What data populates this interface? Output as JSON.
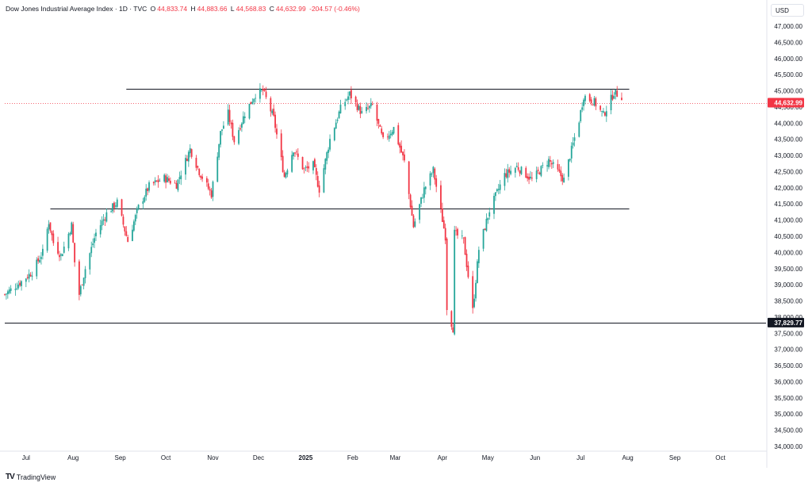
{
  "header": {
    "title": "Dow Jones Industrial Average Index · 1D · TVC",
    "open_label": "O",
    "open": "44,833.74",
    "high_label": "H",
    "high": "44,883.66",
    "low_label": "L",
    "low": "44,568.83",
    "close_label": "C",
    "close": "44,632.99",
    "change": "-204.57 (-0.46%)"
  },
  "currency_button": "USD",
  "brand": {
    "logo": "TV",
    "name": "TradingView"
  },
  "colors": {
    "up": "#26a69a",
    "down": "#f23645",
    "line": "#131722",
    "grid_text": "#131722",
    "badge_last": "#f23645",
    "badge_level": "#131722"
  },
  "chart_data": {
    "type": "candlestick",
    "ylim": [
      34000,
      47000
    ],
    "y_ticks": [
      "47,000.00",
      "46,500.00",
      "46,000.00",
      "45,500.00",
      "45,000.00",
      "44,500.00",
      "44,000.00",
      "43,500.00",
      "43,000.00",
      "42,500.00",
      "42,000.00",
      "41,500.00",
      "41,000.00",
      "40,500.00",
      "40,000.00",
      "39,500.00",
      "39,000.00",
      "38,500.00",
      "38,000.00",
      "37,500.00",
      "37,000.00",
      "36,500.00",
      "36,000.00",
      "35,500.00",
      "35,000.00",
      "34,500.00",
      "34,000.00"
    ],
    "x_ticks": [
      {
        "label": "Jul",
        "date": "2024-07-01",
        "bold": false
      },
      {
        "label": "Aug",
        "date": "2024-08-01",
        "bold": false
      },
      {
        "label": "Sep",
        "date": "2024-09-01",
        "bold": false
      },
      {
        "label": "Oct",
        "date": "2024-10-01",
        "bold": false
      },
      {
        "label": "Nov",
        "date": "2024-11-01",
        "bold": false
      },
      {
        "label": "Dec",
        "date": "2024-12-01",
        "bold": false
      },
      {
        "label": "2025",
        "date": "2025-01-01",
        "bold": true
      },
      {
        "label": "Feb",
        "date": "2025-02-01",
        "bold": false
      },
      {
        "label": "Mar",
        "date": "2025-03-01",
        "bold": false
      },
      {
        "label": "Apr",
        "date": "2025-04-01",
        "bold": false
      },
      {
        "label": "May",
        "date": "2025-05-01",
        "bold": false
      },
      {
        "label": "Jun",
        "date": "2025-06-01",
        "bold": false
      },
      {
        "label": "Jul",
        "date": "2025-07-01",
        "bold": false
      },
      {
        "label": "Aug",
        "date": "2025-08-01",
        "bold": false
      },
      {
        "label": "Sep",
        "date": "2025-09-01",
        "bold": false
      },
      {
        "label": "Oct",
        "date": "2025-10-01",
        "bold": false
      }
    ],
    "date_range": [
      "2024-06-17",
      "2025-10-31"
    ],
    "horizontal_lines": [
      {
        "name": "resistance",
        "value": 45060,
        "from": "2024-09-05",
        "to": "2025-08-02"
      },
      {
        "name": "support",
        "value": 41360,
        "from": "2024-07-17",
        "to": "2025-08-02"
      },
      {
        "name": "floor",
        "value": 37829.77,
        "from": "2024-06-17",
        "to": "2025-10-31",
        "label": "37,829.77"
      }
    ],
    "last_price": {
      "value": 44632.99,
      "label": "44,632.99"
    },
    "close_path": [
      [
        "2024-06-17",
        38700
      ],
      [
        "2024-06-28",
        39100
      ],
      [
        "2024-07-05",
        39400
      ],
      [
        "2024-07-12",
        40000
      ],
      [
        "2024-07-16",
        40950
      ],
      [
        "2024-07-19",
        40300
      ],
      [
        "2024-07-24",
        39900
      ],
      [
        "2024-07-31",
        40850
      ],
      [
        "2024-08-02",
        39700
      ],
      [
        "2024-08-05",
        38700
      ],
      [
        "2024-08-09",
        39500
      ],
      [
        "2024-08-16",
        40600
      ],
      [
        "2024-08-23",
        41200
      ],
      [
        "2024-08-30",
        41550
      ],
      [
        "2024-09-06",
        40350
      ],
      [
        "2024-09-13",
        41400
      ],
      [
        "2024-09-20",
        42050
      ],
      [
        "2024-09-30",
        42300
      ],
      [
        "2024-10-08",
        42100
      ],
      [
        "2024-10-17",
        43200
      ],
      [
        "2024-10-23",
        42500
      ],
      [
        "2024-10-31",
        41800
      ],
      [
        "2024-11-06",
        43700
      ],
      [
        "2024-11-11",
        44300
      ],
      [
        "2024-11-15",
        43450
      ],
      [
        "2024-11-22",
        44300
      ],
      [
        "2024-11-29",
        44900
      ],
      [
        "2024-12-04",
        45000
      ],
      [
        "2024-12-11",
        44150
      ],
      [
        "2024-12-18",
        42350
      ],
      [
        "2024-12-24",
        43200
      ],
      [
        "2024-12-31",
        42550
      ],
      [
        "2025-01-06",
        42700
      ],
      [
        "2025-01-10",
        41950
      ],
      [
        "2025-01-17",
        43500
      ],
      [
        "2025-01-24",
        44450
      ],
      [
        "2025-01-30",
        44900
      ],
      [
        "2025-02-07",
        44300
      ],
      [
        "2025-02-14",
        44550
      ],
      [
        "2025-02-21",
        43450
      ],
      [
        "2025-02-28",
        43850
      ],
      [
        "2025-03-07",
        42800
      ],
      [
        "2025-03-13",
        40800
      ],
      [
        "2025-03-20",
        41950
      ],
      [
        "2025-03-26",
        42550
      ],
      [
        "2025-04-03",
        40500
      ],
      [
        "2025-04-04",
        38300
      ],
      [
        "2025-04-08",
        37650
      ],
      [
        "2025-04-09",
        40600
      ],
      [
        "2025-04-15",
        40350
      ],
      [
        "2025-04-21",
        38200
      ],
      [
        "2025-04-25",
        40100
      ],
      [
        "2025-05-02",
        41300
      ],
      [
        "2025-05-12",
        42400
      ],
      [
        "2025-05-20",
        42650
      ],
      [
        "2025-05-30",
        42250
      ],
      [
        "2025-06-10",
        42850
      ],
      [
        "2025-06-20",
        42250
      ],
      [
        "2025-06-30",
        44100
      ],
      [
        "2025-07-03",
        44850
      ],
      [
        "2025-07-10",
        44650
      ],
      [
        "2025-07-16",
        44250
      ],
      [
        "2025-07-23",
        44950
      ],
      [
        "2025-07-25",
        44900
      ],
      [
        "2025-07-28",
        44833
      ]
    ]
  }
}
